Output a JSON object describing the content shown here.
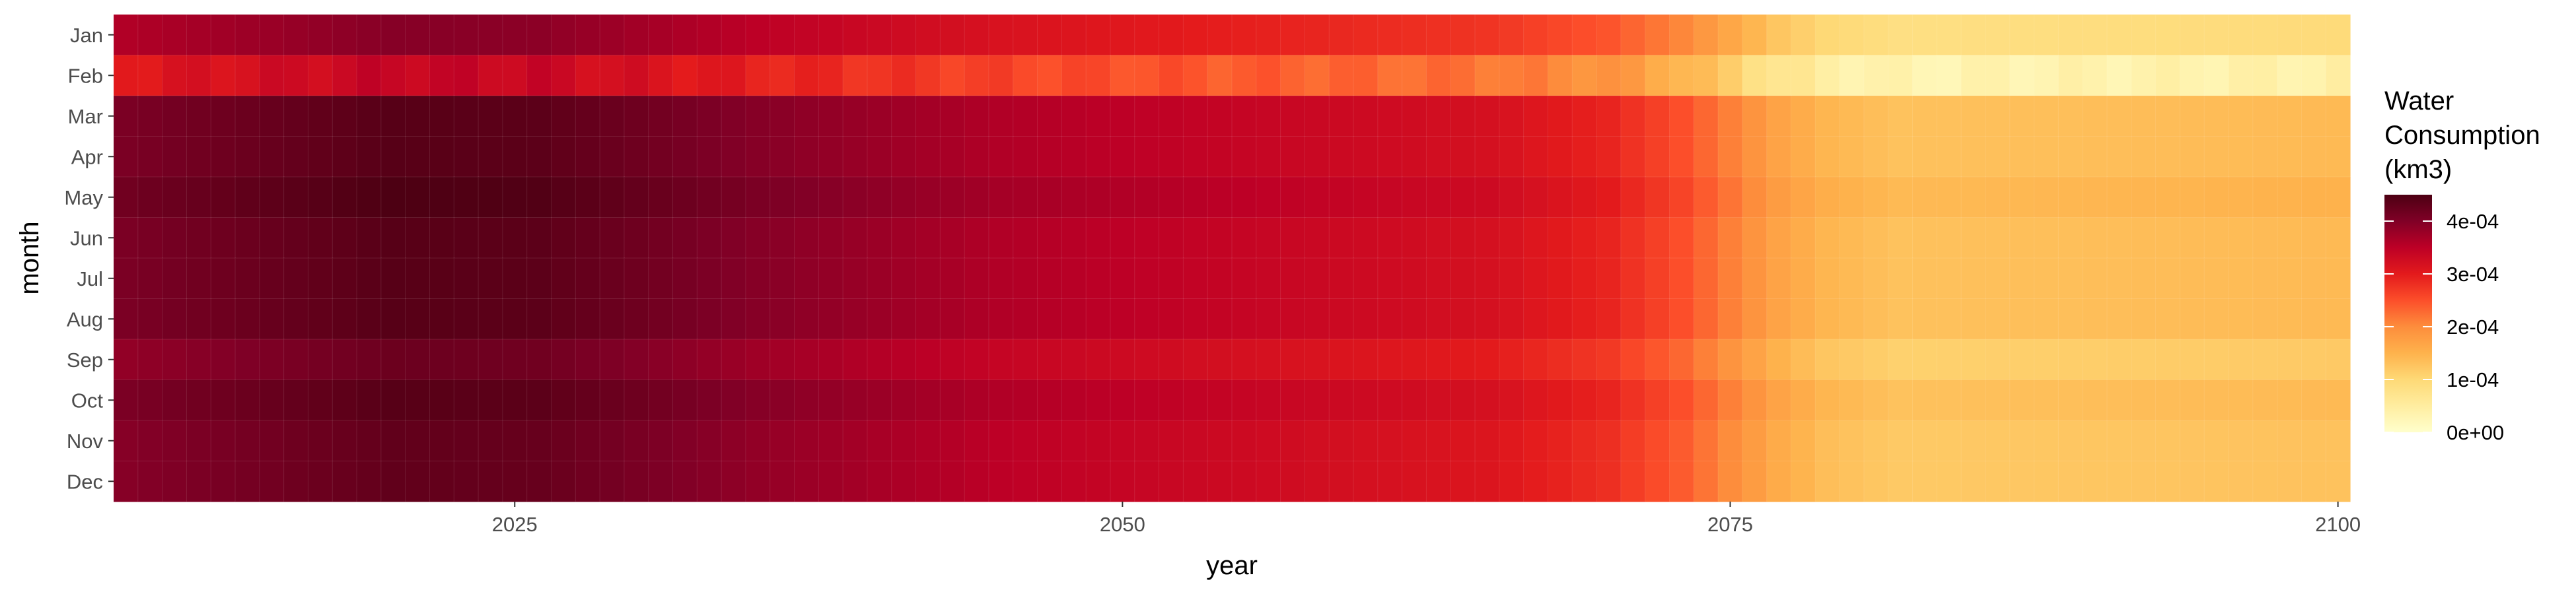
{
  "chart_data": {
    "type": "heatmap",
    "title": "",
    "xlabel": "year",
    "ylabel": "month",
    "x_range": [
      2009,
      2100
    ],
    "x_ticks": [
      2025,
      2050,
      2075,
      2100
    ],
    "months": [
      "Jan",
      "Feb",
      "Mar",
      "Apr",
      "May",
      "Jun",
      "Jul",
      "Aug",
      "Sep",
      "Oct",
      "Nov",
      "Dec"
    ],
    "colorscale": {
      "title_lines": [
        "Water",
        "Consumption",
        "(km3)"
      ],
      "range": [
        0,
        0.00045
      ],
      "ticks": [
        0,
        0.0001,
        0.0002,
        0.0003,
        0.0004
      ],
      "tick_labels": [
        "0e+00",
        "1e-04",
        "2e-04",
        "3e-04",
        "4e-04"
      ],
      "palette": "YlOrRd",
      "stops": [
        "#ffffcc",
        "#ffeda0",
        "#fed976",
        "#feb24c",
        "#fd8d3c",
        "#fc4e2a",
        "#e31a1c",
        "#bd0026",
        "#800026",
        "#4d0013"
      ]
    },
    "trend_keyframes_x": [
      2009,
      2020,
      2026,
      2035,
      2045,
      2055,
      2065,
      2070,
      2073,
      2075,
      2077,
      2079,
      2082,
      2100
    ],
    "trend_keyframes_value": [
      0.000405,
      0.00044,
      0.000435,
      0.000395,
      0.00036,
      0.00034,
      0.00032,
      0.00029,
      0.00025,
      0.00021,
      0.00017,
      0.000145,
      0.00013,
      0.00014
    ],
    "month_offsets": [
      -4.5e-05,
      -0.0001,
      0.0,
      0.0,
      1e-05,
      0.0,
      0.0,
      0.0,
      -2e-05,
      0.0,
      -1e-05,
      -1e-05
    ],
    "grid": false,
    "legend_position": "right",
    "background": "#ebebeb"
  }
}
